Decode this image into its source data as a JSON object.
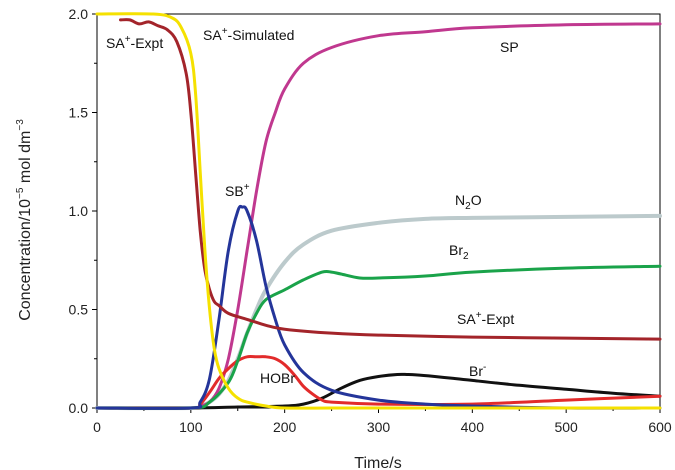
{
  "chart_data": {
    "type": "line",
    "xlabel": "Time/s",
    "ylabel": "Concentration/10",
    "ylabel_exp": "−5",
    "ylabel_unit": " mol dm",
    "ylabel_unit_exp": "−3",
    "xlim": [
      0,
      600
    ],
    "ylim": [
      0,
      2.0
    ],
    "xticks": [
      "0",
      "100",
      "200",
      "300",
      "400",
      "500",
      "600"
    ],
    "yticks": [
      "0.0",
      "0.5",
      "1.0",
      "1.5",
      "2.0"
    ],
    "grid": false,
    "series": [
      {
        "name": "SA+-Simulated",
        "color": "#f5e100",
        "x": [
          0,
          60,
          80,
          90,
          100,
          105,
          110,
          115,
          120,
          125,
          130,
          140,
          150,
          160,
          180,
          200,
          250,
          300,
          400,
          500,
          600
        ],
        "y": [
          2.0,
          2.0,
          1.98,
          1.93,
          1.8,
          1.6,
          1.2,
          0.8,
          0.5,
          0.3,
          0.2,
          0.1,
          0.05,
          0.03,
          0.01,
          0.0,
          0.0,
          0.0,
          0.0,
          0.0,
          0.0
        ]
      },
      {
        "name": "SA+-Expt",
        "color": "#a3242a",
        "x": [
          25,
          35,
          45,
          55,
          65,
          75,
          85,
          95,
          100,
          105,
          110,
          115,
          120,
          125,
          130,
          140,
          160,
          180,
          200,
          250,
          300,
          400,
          500,
          600
        ],
        "y": [
          1.97,
          1.97,
          1.95,
          1.96,
          1.94,
          1.92,
          1.86,
          1.7,
          1.5,
          1.2,
          0.9,
          0.7,
          0.6,
          0.54,
          0.52,
          0.48,
          0.45,
          0.42,
          0.4,
          0.38,
          0.37,
          0.36,
          0.355,
          0.35
        ]
      },
      {
        "name": "SP",
        "color": "#c0388f",
        "x": [
          0,
          100,
          110,
          120,
          130,
          140,
          150,
          160,
          170,
          180,
          190,
          200,
          220,
          250,
          300,
          350,
          400,
          500,
          600
        ],
        "y": [
          0.0,
          0.0,
          0.01,
          0.03,
          0.1,
          0.25,
          0.5,
          0.8,
          1.1,
          1.35,
          1.5,
          1.62,
          1.75,
          1.83,
          1.89,
          1.91,
          1.93,
          1.945,
          1.95
        ]
      },
      {
        "name": "SB+",
        "color": "#24359a",
        "x": [
          0,
          100,
          110,
          120,
          130,
          140,
          150,
          155,
          160,
          170,
          180,
          190,
          200,
          220,
          250,
          300,
          350,
          400,
          500,
          600
        ],
        "y": [
          0.0,
          0.0,
          0.03,
          0.15,
          0.45,
          0.8,
          1.0,
          1.02,
          1.0,
          0.85,
          0.62,
          0.45,
          0.32,
          0.18,
          0.09,
          0.04,
          0.02,
          0.01,
          0.0,
          0.0
        ]
      },
      {
        "name": "N2O",
        "color": "#bccacc",
        "x": [
          0,
          100,
          110,
          120,
          130,
          140,
          150,
          160,
          170,
          180,
          200,
          220,
          250,
          300,
          350,
          400,
          500,
          600
        ],
        "y": [
          0.0,
          0.0,
          0.01,
          0.03,
          0.07,
          0.14,
          0.25,
          0.38,
          0.5,
          0.6,
          0.74,
          0.83,
          0.9,
          0.94,
          0.96,
          0.965,
          0.97,
          0.975
        ]
      },
      {
        "name": "Br2",
        "color": "#1aa34a",
        "x": [
          0,
          100,
          120,
          140,
          150,
          160,
          170,
          180,
          200,
          220,
          240,
          250,
          260,
          280,
          300,
          350,
          400,
          500,
          600
        ],
        "y": [
          0.0,
          0.0,
          0.03,
          0.13,
          0.24,
          0.38,
          0.48,
          0.55,
          0.6,
          0.65,
          0.69,
          0.69,
          0.68,
          0.66,
          0.66,
          0.67,
          0.69,
          0.71,
          0.72
        ]
      },
      {
        "name": "HOBr",
        "color": "#e22b2b",
        "x": [
          0,
          100,
          110,
          120,
          130,
          140,
          150,
          160,
          170,
          180,
          190,
          200,
          210,
          220,
          230,
          240,
          250,
          300,
          400,
          500,
          600
        ],
        "y": [
          0.0,
          0.0,
          0.02,
          0.08,
          0.15,
          0.2,
          0.24,
          0.26,
          0.26,
          0.26,
          0.25,
          0.22,
          0.17,
          0.11,
          0.07,
          0.04,
          0.03,
          0.02,
          0.02,
          0.04,
          0.06
        ]
      },
      {
        "name": "Br-",
        "color": "#111111",
        "x": [
          0,
          100,
          150,
          200,
          220,
          240,
          260,
          280,
          300,
          320,
          330,
          340,
          360,
          380,
          400,
          450,
          500,
          550,
          600
        ],
        "y": [
          0.0,
          0.0,
          0.005,
          0.01,
          0.02,
          0.05,
          0.1,
          0.14,
          0.16,
          0.17,
          0.17,
          0.168,
          0.16,
          0.15,
          0.14,
          0.115,
          0.095,
          0.075,
          0.06
        ]
      }
    ],
    "labels": [
      {
        "key": "sa_expt_left",
        "text": "SA",
        "sup": "+",
        "rest": "-Expt"
      },
      {
        "key": "sa_sim",
        "text": "SA",
        "sup": "+",
        "rest": "-Simulated"
      },
      {
        "key": "sp",
        "text": "SP",
        "sup": "",
        "rest": ""
      },
      {
        "key": "sb",
        "text": "SB",
        "sup": "+",
        "rest": ""
      },
      {
        "key": "n2o",
        "text": "N",
        "sub": "2",
        "rest": "O"
      },
      {
        "key": "br2",
        "text": "Br",
        "sub": "2",
        "rest": ""
      },
      {
        "key": "sa_expt_right",
        "text": "SA",
        "sup": "+",
        "rest": "-Expt"
      },
      {
        "key": "hobr",
        "text": "HOBr",
        "sup": "",
        "rest": ""
      },
      {
        "key": "brm",
        "text": "Br",
        "sup": "-",
        "rest": ""
      }
    ]
  }
}
